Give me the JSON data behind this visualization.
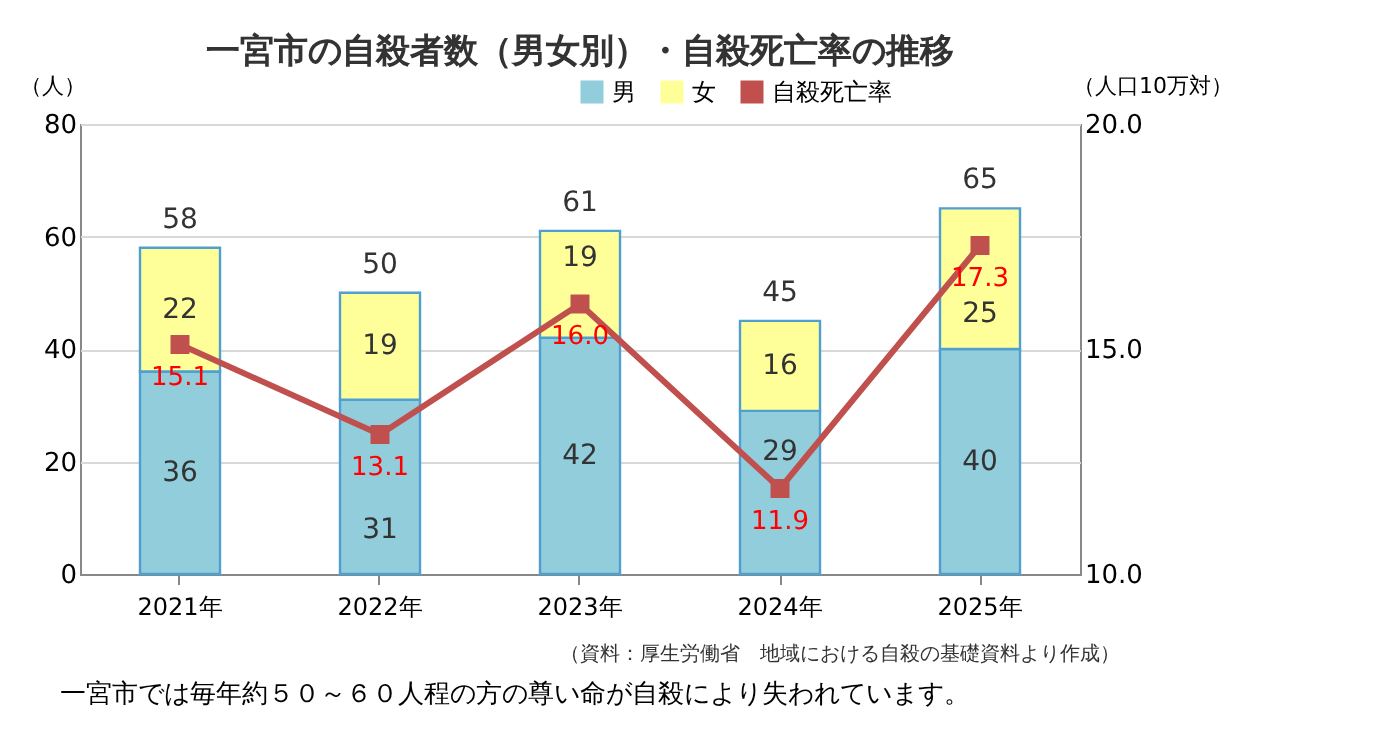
{
  "chart_data": {
    "type": "bar",
    "title": "一宮市の自殺者数（男女別）・自殺死亡率の推移",
    "ylabel": "（人）",
    "y2label": "（人口10万対）",
    "categories": [
      "2021年",
      "2022年",
      "2023年",
      "2024年",
      "2025年"
    ],
    "stacked": true,
    "series": [
      {
        "name": "男",
        "color": "#92cddc",
        "values": [
          36,
          31,
          42,
          29,
          40
        ]
      },
      {
        "name": "女",
        "color": "#ffff99",
        "values": [
          22,
          19,
          19,
          16,
          25
        ]
      },
      {
        "name": "自殺死亡率",
        "type": "line",
        "axis": "y2",
        "color": "#c0504d",
        "marker": "square",
        "values": [
          15.1,
          13.1,
          16.0,
          11.9,
          17.3
        ],
        "value_labels": [
          "15.1",
          "13.1",
          "16.0",
          "11.9",
          "17.3"
        ]
      }
    ],
    "data_labels": true,
    "totals": [
      "58",
      "50",
      "61",
      "45",
      "65"
    ],
    "ylim": [
      0,
      80
    ],
    "yticks": [
      0,
      20,
      40,
      60,
      80
    ],
    "y2lim": [
      10,
      20
    ],
    "y2ticks": [
      {
        "value": 10,
        "label": "10.0"
      },
      {
        "value": 15,
        "label": "15.0"
      },
      {
        "value": 20,
        "label": "20.0"
      }
    ],
    "grid": "y",
    "legend": "top right",
    "annotations": [
      "（資料：厚生労働省　地域における自殺の基礎資料より作成）",
      "一宮市では毎年約５０～６０人程の方の尊い命が自殺により失われています。"
    ]
  }
}
